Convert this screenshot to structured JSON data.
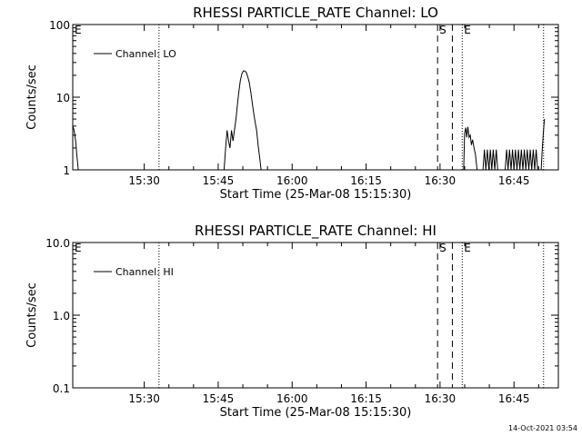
{
  "footer_timestamp": "14-Oct-2021 03:54",
  "chart_data": [
    {
      "type": "line",
      "title": "RHESSI PARTICLE_RATE Channel: LO",
      "xlabel": "Start Time (25-Mar-08 15:15:30)",
      "ylabel": "Counts/sec",
      "yscale": "log",
      "xlim": [
        15.2583,
        16.9
      ],
      "ylim": [
        1,
        100
      ],
      "x_ticks": [
        "15:30",
        "15:45",
        "16:00",
        "16:15",
        "16:30",
        "16:45"
      ],
      "y_ticks": [
        "1",
        "10",
        "100"
      ],
      "legend": {
        "label": "Channel: LO",
        "position": "top-left"
      },
      "markers": [
        {
          "label": "E",
          "time": "15:15:30",
          "style": "dotted"
        },
        {
          "label": "",
          "time": "15:33:00",
          "style": "dotted"
        },
        {
          "label": "S",
          "time": "16:29:30",
          "style": "dashed"
        },
        {
          "label": "",
          "time": "16:32:30",
          "style": "dashed"
        },
        {
          "label": "E",
          "time": "16:34:30",
          "style": "dotted"
        },
        {
          "label": "",
          "time": "16:51:00",
          "style": "dotted"
        }
      ],
      "series": [
        {
          "name": "Channel: LO",
          "segments": [
            [
              [
                15.2583,
                4.0
              ],
              [
                15.263,
                3.5
              ],
              [
                15.268,
                2.5
              ],
              [
                15.272,
                1.6
              ],
              [
                15.277,
                1.0
              ]
            ],
            [
              [
                15.77,
                1.0
              ],
              [
                15.775,
                2.0
              ],
              [
                15.78,
                3.5
              ],
              [
                15.785,
                2.5
              ],
              [
                15.79,
                2.0
              ],
              [
                15.795,
                3.5
              ],
              [
                15.8,
                2.5
              ],
              [
                15.805,
                3.5
              ],
              [
                15.81,
                5.0
              ],
              [
                15.815,
                8.0
              ],
              [
                15.82,
                12.0
              ],
              [
                15.825,
                17.0
              ],
              [
                15.83,
                21.0
              ],
              [
                15.835,
                23.0
              ],
              [
                15.84,
                23.0
              ],
              [
                15.845,
                22.0
              ],
              [
                15.85,
                19.0
              ],
              [
                15.855,
                16.0
              ],
              [
                15.86,
                12.0
              ],
              [
                15.865,
                8.5
              ],
              [
                15.87,
                6.0
              ],
              [
                15.875,
                4.5
              ],
              [
                15.88,
                3.5
              ],
              [
                15.885,
                2.2
              ],
              [
                15.89,
                1.5
              ],
              [
                15.895,
                1.0
              ]
            ],
            [
              [
                16.58,
                1.0
              ],
              [
                16.583,
                3.2
              ],
              [
                16.587,
                3.8
              ],
              [
                16.59,
                2.8
              ],
              [
                16.594,
                3.9
              ],
              [
                16.598,
                2.8
              ],
              [
                16.602,
                3.0
              ],
              [
                16.606,
                2.2
              ],
              [
                16.61,
                2.6
              ],
              [
                16.615,
                2.0
              ],
              [
                16.62,
                1.6
              ],
              [
                16.625,
                1.0
              ]
            ],
            [
              [
                16.645,
                1.0
              ],
              [
                16.65,
                1.9
              ],
              [
                16.655,
                1.0
              ],
              [
                16.66,
                1.9
              ],
              [
                16.665,
                1.0
              ],
              [
                16.67,
                1.9
              ],
              [
                16.675,
                1.0
              ],
              [
                16.68,
                1.9
              ],
              [
                16.685,
                1.0
              ],
              [
                16.69,
                1.9
              ],
              [
                16.695,
                1.0
              ]
            ],
            [
              [
                16.72,
                1.0
              ],
              [
                16.725,
                1.9
              ],
              [
                16.73,
                1.0
              ],
              [
                16.735,
                1.9
              ],
              [
                16.74,
                1.0
              ],
              [
                16.745,
                1.9
              ],
              [
                16.75,
                1.0
              ],
              [
                16.755,
                1.9
              ],
              [
                16.76,
                1.0
              ],
              [
                16.765,
                1.9
              ],
              [
                16.77,
                1.0
              ],
              [
                16.775,
                1.9
              ],
              [
                16.78,
                1.0
              ],
              [
                16.785,
                1.9
              ],
              [
                16.79,
                1.0
              ],
              [
                16.795,
                1.9
              ],
              [
                16.8,
                1.0
              ],
              [
                16.805,
                1.9
              ],
              [
                16.81,
                1.0
              ],
              [
                16.815,
                1.9
              ],
              [
                16.82,
                1.0
              ],
              [
                16.825,
                1.9
              ],
              [
                16.83,
                1.0
              ]
            ],
            [
              [
                16.842,
                1.0
              ],
              [
                16.846,
                2.0
              ],
              [
                16.85,
                3.5
              ],
              [
                16.853,
                5.0
              ]
            ]
          ]
        }
      ]
    },
    {
      "type": "line",
      "title": "RHESSI PARTICLE_RATE Channel: HI",
      "xlabel": "Start Time (25-Mar-08 15:15:30)",
      "ylabel": "Counts/sec",
      "yscale": "log",
      "xlim": [
        15.2583,
        16.9
      ],
      "ylim": [
        0.1,
        10
      ],
      "x_ticks": [
        "15:30",
        "15:45",
        "16:00",
        "16:15",
        "16:30",
        "16:45"
      ],
      "y_ticks": [
        "0.1",
        "1.0",
        "10.0"
      ],
      "legend": {
        "label": "Channel: HI",
        "position": "top-left"
      },
      "markers": [
        {
          "label": "E",
          "time": "15:15:30",
          "style": "dotted"
        },
        {
          "label": "",
          "time": "15:33:00",
          "style": "dotted"
        },
        {
          "label": "S",
          "time": "16:29:30",
          "style": "dashed"
        },
        {
          "label": "",
          "time": "16:32:30",
          "style": "dashed"
        },
        {
          "label": "E",
          "time": "16:34:30",
          "style": "dotted"
        },
        {
          "label": "",
          "time": "16:51:00",
          "style": "dotted"
        }
      ],
      "series": [
        {
          "name": "Channel: HI",
          "segments": []
        }
      ]
    }
  ]
}
